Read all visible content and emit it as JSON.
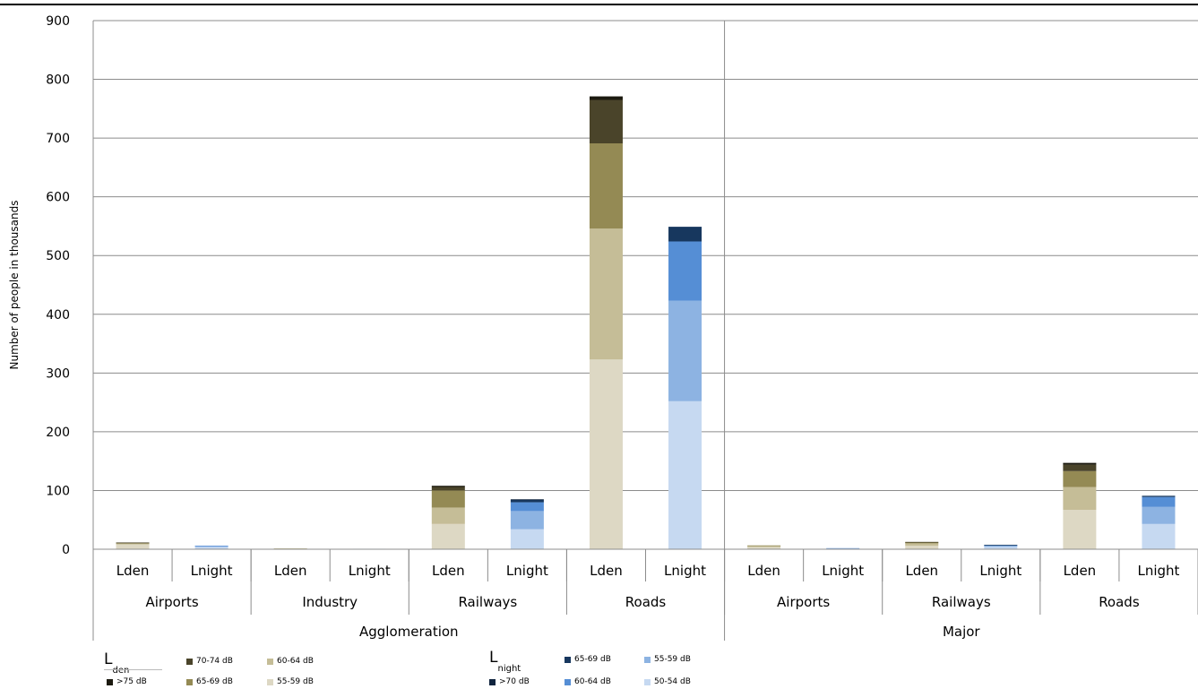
{
  "chart_data": {
    "type": "bar",
    "stacked": true,
    "ylabel": "Number of people in thousands",
    "xlabel": "",
    "ylim": [
      0,
      900
    ],
    "yticks": [
      0,
      100,
      200,
      300,
      400,
      500,
      600,
      700,
      800,
      900
    ],
    "grid": true,
    "groups": [
      {
        "name": "Agglomeration",
        "sources": [
          {
            "name": "Airports",
            "bars": [
              {
                "label": "Lden",
                "stack": "lden",
                "values": [
                  8,
                  2,
                  1,
                  0.5,
                  0
                ]
              },
              {
                "label": "Lnight",
                "stack": "lnight",
                "values": [
                  4,
                  1.5,
                  0.5,
                  0,
                  0
                ]
              }
            ]
          },
          {
            "name": "Industry",
            "bars": [
              {
                "label": "Lden",
                "stack": "lden",
                "values": [
                  1,
                  0.5,
                  0,
                  0,
                  0
                ]
              },
              {
                "label": "Lnight",
                "stack": "lnight",
                "values": [
                  0.6,
                  0.2,
                  0,
                  0,
                  0
                ]
              }
            ]
          },
          {
            "name": "Railways",
            "bars": [
              {
                "label": "Lden",
                "stack": "lden",
                "values": [
                  43,
                  28,
                  29,
                  6,
                  2
                ]
              },
              {
                "label": "Lnight",
                "stack": "lnight",
                "values": [
                  34,
                  31,
                  15,
                  4,
                  1
                ]
              }
            ]
          },
          {
            "name": "Roads",
            "bars": [
              {
                "label": "Lden",
                "stack": "lden",
                "values": [
                  323,
                  223,
                  145,
                  74,
                  6
                ]
              },
              {
                "label": "Lnight",
                "stack": "lnight",
                "values": [
                  252,
                  171,
                  101,
                  25,
                  0
                ]
              }
            ]
          }
        ]
      },
      {
        "name": "Major",
        "sources": [
          {
            "name": "Airports",
            "bars": [
              {
                "label": "Lden",
                "stack": "lden",
                "values": [
                  4,
                  2,
                  0.5,
                  0,
                  0
                ]
              },
              {
                "label": "Lnight",
                "stack": "lnight",
                "values": [
                  1.5,
                  0.5,
                  0,
                  0,
                  0
                ]
              }
            ]
          },
          {
            "name": "Railways",
            "bars": [
              {
                "label": "Lden",
                "stack": "lden",
                "values": [
                  6,
                  4,
                  2,
                  0.5,
                  0
                ]
              },
              {
                "label": "Lnight",
                "stack": "lnight",
                "values": [
                  4,
                  2,
                  1,
                  0.5,
                  0
                ]
              }
            ]
          },
          {
            "name": "Roads",
            "bars": [
              {
                "label": "Lden",
                "stack": "lden",
                "values": [
                  67,
                  39,
                  27,
                  11,
                  3
                ]
              },
              {
                "label": "Lnight",
                "stack": "lnight",
                "values": [
                  43,
                  29,
                  17,
                  2,
                  0
                ]
              }
            ]
          }
        ]
      }
    ],
    "stacks": {
      "lden": [
        {
          "name": "55-59 dB",
          "color": "#ddd8c4"
        },
        {
          "name": "60-64 dB",
          "color": "#c5bd97"
        },
        {
          "name": "65-69 dB",
          "color": "#948a54"
        },
        {
          "name": "70-74 dB",
          "color": "#4a442a"
        },
        {
          "name": ">75 dB",
          "color": "#1c1a10"
        }
      ],
      "lnight": [
        {
          "name": "50-54 dB",
          "color": "#c6d9f1"
        },
        {
          "name": "55-59 dB",
          "color": "#8db3e2"
        },
        {
          "name": "60-64 dB",
          "color": "#558ed5"
        },
        {
          "name": "65-69 dB",
          "color": "#17375e"
        },
        {
          "name": ">70 dB",
          "color": "#0f243e"
        }
      ]
    }
  },
  "legend": {
    "lden": {
      "symbol": "L",
      "subscript": "den"
    },
    "lnight": {
      "symbol": "L",
      "subscript": "night"
    }
  }
}
